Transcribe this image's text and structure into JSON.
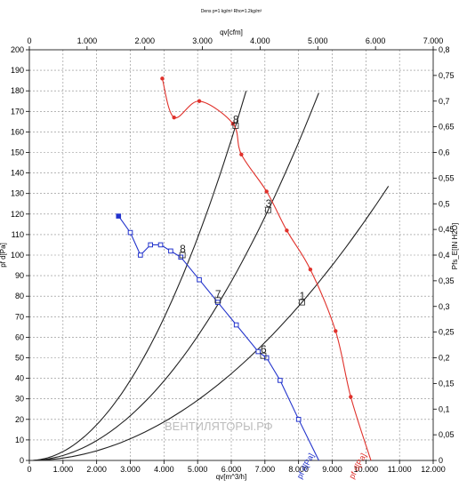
{
  "chart": {
    "header": "Dens p=1 kg/m³   Rho=1.2kg/m³",
    "watermark": "ВЕНТИЛЯТОРЫ.РФ"
  },
  "chart_data": {
    "type": "line",
    "x_axis": {
      "label": "qv[m^3/h]",
      "range": [
        0,
        12000
      ],
      "ticks": [
        0,
        1000,
        2000,
        3000,
        4000,
        5000,
        6000,
        7000,
        8000,
        9000,
        10000,
        11000,
        12000
      ],
      "tick_labels": [
        "0",
        "1.000",
        "2.000",
        "3.000",
        "4.000",
        "5.000",
        "6.000",
        "7.000",
        "8.000",
        "9.000",
        "10.000",
        "11.000",
        "12.000"
      ]
    },
    "x2_axis": {
      "label": "qv[cfm]",
      "range": [
        0,
        7000
      ],
      "ticks": [
        0,
        1000,
        2000,
        3000,
        4000,
        5000,
        6000,
        7000
      ],
      "tick_labels": [
        "0",
        "1.000",
        "2.000",
        "3.000",
        "4.000",
        "5.000",
        "6.000",
        "7.000"
      ]
    },
    "y_axis": {
      "label": "pf d[Pa]",
      "range": [
        0,
        200
      ],
      "ticks": [
        0,
        10,
        20,
        30,
        40,
        50,
        60,
        70,
        80,
        90,
        100,
        110,
        120,
        130,
        140,
        150,
        160,
        170,
        180,
        190,
        200
      ]
    },
    "y2_axis": {
      "label": "Pfs_E[IN H2O]",
      "range": [
        0,
        0.8
      ],
      "ticks": [
        0,
        0.05,
        0.1,
        0.15,
        0.2,
        0.25,
        0.3,
        0.35,
        0.4,
        0.45,
        0.5,
        0.55,
        0.6,
        0.65,
        0.7,
        0.75,
        0.8
      ],
      "tick_labels": [
        "0",
        "0,05",
        "0,1",
        "0,15",
        "0,2",
        "0,25",
        "0,3",
        "0,35",
        "0,4",
        "0,45",
        "0,5",
        "0,55",
        "0,6",
        "0,65",
        "0,7",
        "0,75",
        "0,8"
      ]
    },
    "grid": true,
    "series": [
      {
        "name": "pf d[Pa]",
        "color": "#e0312b",
        "marker": "circle",
        "points": [
          [
            3950,
            186
          ],
          [
            4300,
            167
          ],
          [
            5050,
            175
          ],
          [
            6050,
            164
          ],
          [
            6300,
            149
          ],
          [
            7050,
            131
          ],
          [
            7650,
            112
          ],
          [
            8350,
            93
          ],
          [
            9100,
            63
          ],
          [
            9550,
            31
          ],
          [
            10150,
            0
          ]
        ]
      },
      {
        "name": "pf d[Pa]",
        "color": "#2233cc",
        "marker": "square",
        "points": [
          [
            2650,
            119
          ],
          [
            3000,
            111
          ],
          [
            3300,
            100
          ],
          [
            3600,
            105
          ],
          [
            3900,
            105
          ],
          [
            4200,
            102
          ],
          [
            4500,
            99
          ],
          [
            5050,
            88
          ],
          [
            5600,
            77
          ],
          [
            6150,
            66
          ],
          [
            6800,
            53
          ],
          [
            7050,
            50
          ],
          [
            7450,
            39
          ],
          [
            8000,
            20
          ],
          [
            8600,
            0
          ]
        ]
      }
    ],
    "operating_points": [
      {
        "label": "8",
        "q": 6130,
        "p": 163
      },
      {
        "label": "3",
        "q": 7100,
        "p": 122
      },
      {
        "label": "1",
        "q": 8100,
        "p": 77
      },
      {
        "label": "8",
        "q": 4550,
        "p": 100
      },
      {
        "label": "7",
        "q": 5600,
        "p": 78
      },
      {
        "label": "6",
        "q": 6950,
        "p": 51
      }
    ],
    "system_curves": [
      {
        "through_q": 6130,
        "through_p": 163,
        "q_max": 6550
      },
      {
        "through_q": 7100,
        "through_p": 122,
        "q_max": 8600
      },
      {
        "through_q": 8100,
        "through_p": 77,
        "q_max": 10850
      }
    ]
  }
}
